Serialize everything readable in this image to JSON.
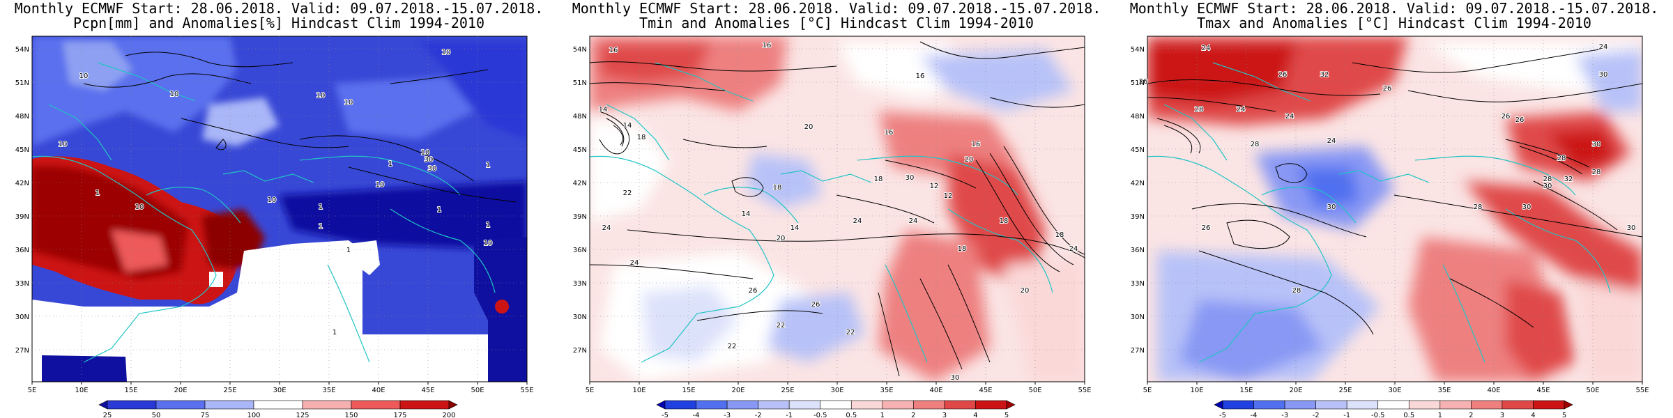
{
  "panels": [
    {
      "title1": "Monthly ECMWF Start: 28.06.2018. Valid: 09.07.2018.-15.07.2018.",
      "title2": "Pcpn[mm] and Anomalies[%] Hindcast Clim 1994-2010",
      "variable": "precipitation",
      "lon_ticks": [
        "5E",
        "10E",
        "15E",
        "20E",
        "25E",
        "30E",
        "35E",
        "40E",
        "45E",
        "50E",
        "55E"
      ],
      "lat_ticks": [
        "54N",
        "51N",
        "48N",
        "45N",
        "42N",
        "39N",
        "36N",
        "33N",
        "30N",
        "27N"
      ],
      "colorbar": {
        "labels": [
          "25",
          "50",
          "75",
          "100",
          "125",
          "150",
          "175",
          "200"
        ],
        "colors": [
          "#1010a0",
          "#2a38d6",
          "#5a70ee",
          "#a9b6f7",
          "#ffffff",
          "#f6b0b0",
          "#ee5a5a",
          "#cc1414",
          "#8c0000"
        ]
      },
      "contour_labels": [
        "10",
        "10",
        "10",
        "10",
        "10",
        "10",
        "10",
        "10",
        "10",
        "10",
        "10",
        "1",
        "1",
        "1",
        "1",
        "1",
        "1",
        "1",
        "1",
        "1",
        "30",
        "30"
      ]
    },
    {
      "title1": "Monthly ECMWF Start: 28.06.2018. Valid: 09.07.2018.-15.07.2018.",
      "title2": "Tmin and Anomalies [°C] Hindcast Clim 1994-2010",
      "variable": "tmin",
      "lon_ticks": [
        "5E",
        "10E",
        "15E",
        "20E",
        "25E",
        "30E",
        "35E",
        "40E",
        "45E",
        "50E",
        "55E"
      ],
      "lat_ticks": [
        "54N",
        "51N",
        "48N",
        "45N",
        "42N",
        "39N",
        "36N",
        "33N",
        "30N",
        "27N"
      ],
      "colorbar": {
        "labels": [
          "-5",
          "-4",
          "-3",
          "-2",
          "-1",
          "-0.5",
          "0.5",
          "1",
          "2",
          "3",
          "4",
          "5"
        ],
        "colors": [
          "#0000b0",
          "#2040e0",
          "#5070f0",
          "#8898f4",
          "#b8c2f8",
          "#dde2fb",
          "#ffffff",
          "#fbd8d8",
          "#f6b2b2",
          "#ee8080",
          "#e04848",
          "#cc1414",
          "#a00000"
        ]
      },
      "contour_labels": [
        "16",
        "16",
        "16",
        "16",
        "14",
        "14",
        "14",
        "14",
        "18",
        "18",
        "18",
        "18",
        "18",
        "18",
        "20",
        "20",
        "20",
        "20",
        "22",
        "22",
        "22",
        "22",
        "24",
        "24",
        "24",
        "24",
        "26",
        "26",
        "12",
        "12",
        "30",
        "30",
        "16",
        "24"
      ]
    },
    {
      "title1": "Monthly ECMWF Start: 28.06.2018. Valid: 09.07.2018.-15.07.2018.",
      "title2": "Tmax and Anomalies [°C] Hindcast Clim 1994-2010",
      "variable": "tmax",
      "lon_ticks": [
        "5E",
        "10E",
        "15E",
        "20E",
        "25E",
        "30E",
        "35E",
        "40E",
        "45E",
        "50E",
        "55E"
      ],
      "lat_ticks": [
        "54N",
        "51N",
        "48N",
        "45N",
        "42N",
        "39N",
        "36N",
        "33N",
        "30N",
        "27N"
      ],
      "colorbar": {
        "labels": [
          "-5",
          "-4",
          "-3",
          "-2",
          "-1",
          "-0.5",
          "0.5",
          "1",
          "2",
          "3",
          "4",
          "5"
        ],
        "colors": [
          "#0000b0",
          "#2040e0",
          "#5070f0",
          "#8898f4",
          "#b8c2f8",
          "#dde2fb",
          "#ffffff",
          "#fbd8d8",
          "#f6b2b2",
          "#ee8080",
          "#e04848",
          "#cc1414",
          "#a00000"
        ]
      },
      "contour_labels": [
        "24",
        "24",
        "24",
        "26",
        "26",
        "26",
        "26",
        "28",
        "28",
        "28",
        "28",
        "28",
        "30",
        "30",
        "30",
        "30",
        "32",
        "32",
        "24",
        "26",
        "28",
        "30",
        "24",
        "28",
        "30",
        "26"
      ]
    }
  ]
}
